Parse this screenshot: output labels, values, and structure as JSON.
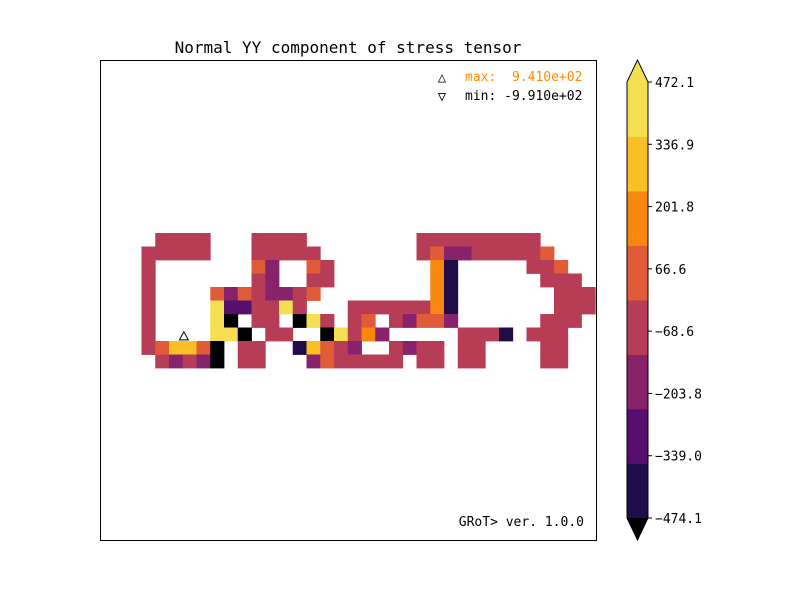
{
  "chart_data": {
    "type": "heatmap",
    "title": "Normal YY component of stress tensor",
    "annotations": {
      "max_marker": "△",
      "max_label": "max:  9.410e+02",
      "min_marker": "▽",
      "min_label": "min: -9.910e+02",
      "version": "GRoT> ver. 1.0.0"
    },
    "colorbar": {
      "tick_labels": [
        "472.1",
        "336.9",
        "201.8",
        "66.6",
        "−68.6",
        "−203.8",
        "−339.0",
        "−474.1"
      ],
      "levels": [
        -474.1,
        -406.55,
        -339.0,
        -271.4,
        -203.8,
        -136.2,
        -68.6,
        -1.0,
        66.6,
        134.2,
        201.8,
        269.35,
        336.9,
        404.5,
        472.1
      ],
      "colors": [
        "#1f0c48",
        "#550f6d",
        "#88226a",
        "#b73d56",
        "#e05b38",
        "#f8870e",
        "#fbbf25",
        "#f3df51"
      ],
      "extend": "both",
      "under_color": "#000004",
      "over_color": "#f3df51"
    },
    "markers": {
      "max_cell": [
        4,
        7
      ],
      "min_cell": [
        5,
        7
      ]
    },
    "palette_key": {
      "A": "#000004",
      "B": "#1f0c48",
      "C": "#550f6d",
      "D": "#88226a",
      "E": "#b73d56",
      "F": "#e05b38",
      "G": "#f8870e",
      "H": "#fbbf25",
      "I": "#f3df51"
    },
    "grid_rows": [
      "...EEEE...EEEE........EEEEEEEEE.....",
      "..EEEEE...EEEEE.......EFDDEEEEEF....",
      "..E.......FD..FE.......GB.....EEF...",
      "..E.......ED..EE.......GB......EEE..",
      "..E....FDFEDDEF........GB.......EEE.",
      "..E....ICCEEIE...EEEEEEGB.......EEE.",
      "..E....IA.EE.AIE.EF.EDFFD......EEE..",
      "..E....IIA.EE..AIEGD.....EEEB.EEE...",
      "..EFHHFA.EE..BHFED..EDEE.EE....EE....",
      "...EDEDA.EE...DFEEEEE.EE.EE....EE...."
    ]
  }
}
